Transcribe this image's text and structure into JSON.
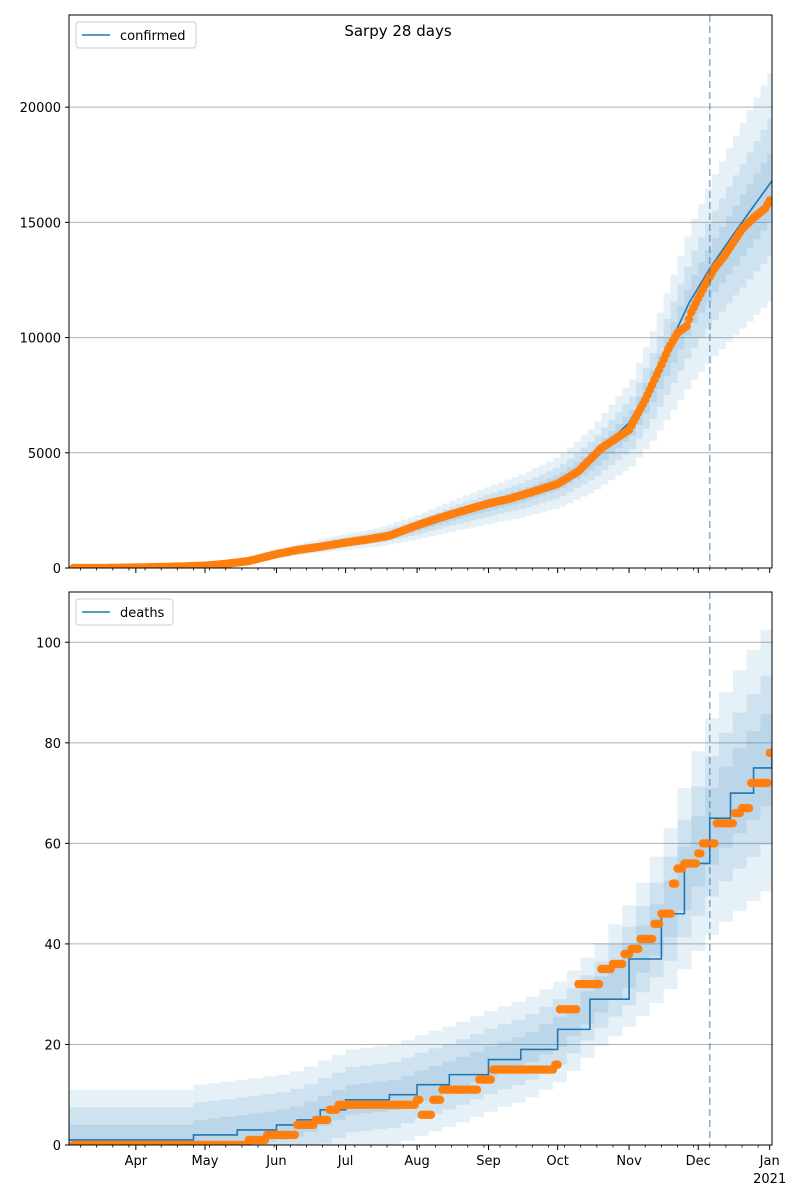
{
  "title": "Sarpy 28 days",
  "colors": {
    "model": "#1f77b4",
    "observed": "#ff7f0e",
    "band": "#1f77b4",
    "grid": "#b0b0b0",
    "forecast_line": "#1f77b4"
  },
  "x_axis": {
    "tick_labels": [
      "Apr",
      "May",
      "Jun",
      "Jul",
      "Aug",
      "Sep",
      "Oct",
      "Nov",
      "Dec",
      "Jan"
    ],
    "tick_dates": [
      "2020-04-01",
      "2020-05-01",
      "2020-06-01",
      "2020-07-01",
      "2020-08-01",
      "2020-09-01",
      "2020-10-01",
      "2020-11-01",
      "2020-12-01",
      "2021-01-01"
    ],
    "year_label": "2021",
    "range": [
      "2020-03-03",
      "2021-01-02"
    ]
  },
  "forecast_date": "2020-12-06",
  "chart_data": [
    {
      "type": "line",
      "legend": "confirmed",
      "legend_position": "upper-left",
      "grid": "y",
      "ylim": [
        0,
        24000
      ],
      "yticks": [
        0,
        5000,
        10000,
        15000,
        20000
      ],
      "model": [
        [
          "2020-03-03",
          0
        ],
        [
          "2020-04-01",
          20
        ],
        [
          "2020-04-15",
          60
        ],
        [
          "2020-05-01",
          150
        ],
        [
          "2020-05-15",
          320
        ],
        [
          "2020-06-01",
          650
        ],
        [
          "2020-06-15",
          900
        ],
        [
          "2020-07-01",
          1150
        ],
        [
          "2020-07-15",
          1350
        ],
        [
          "2020-08-01",
          1800
        ],
        [
          "2020-08-15",
          2250
        ],
        [
          "2020-09-01",
          2750
        ],
        [
          "2020-09-15",
          3150
        ],
        [
          "2020-10-01",
          3750
        ],
        [
          "2020-10-15",
          4700
        ],
        [
          "2020-11-01",
          6300
        ],
        [
          "2020-11-10",
          7900
        ],
        [
          "2020-11-20",
          10000
        ],
        [
          "2020-11-27",
          11500
        ],
        [
          "2020-12-06",
          13000
        ],
        [
          "2020-12-15",
          14300
        ],
        [
          "2020-12-25",
          15700
        ],
        [
          "2021-01-02",
          16800
        ]
      ],
      "observed": [
        [
          "2020-03-05",
          0
        ],
        [
          "2020-03-15",
          2
        ],
        [
          "2020-03-25",
          10
        ],
        [
          "2020-04-05",
          30
        ],
        [
          "2020-04-15",
          50
        ],
        [
          "2020-04-25",
          80
        ],
        [
          "2020-05-01",
          100
        ],
        [
          "2020-05-10",
          180
        ],
        [
          "2020-05-20",
          300
        ],
        [
          "2020-06-01",
          600
        ],
        [
          "2020-06-10",
          780
        ],
        [
          "2020-06-20",
          920
        ],
        [
          "2020-07-01",
          1100
        ],
        [
          "2020-07-10",
          1230
        ],
        [
          "2020-07-20",
          1400
        ],
        [
          "2020-08-01",
          1850
        ],
        [
          "2020-08-10",
          2150
        ],
        [
          "2020-08-20",
          2450
        ],
        [
          "2020-09-01",
          2800
        ],
        [
          "2020-09-10",
          3000
        ],
        [
          "2020-09-20",
          3300
        ],
        [
          "2020-10-01",
          3650
        ],
        [
          "2020-10-10",
          4200
        ],
        [
          "2020-10-20",
          5200
        ],
        [
          "2020-11-01",
          6000
        ],
        [
          "2020-11-08",
          7300
        ],
        [
          "2020-11-14",
          8600
        ],
        [
          "2020-11-18",
          9500
        ],
        [
          "2020-11-22",
          10200
        ],
        [
          "2020-11-26",
          10500
        ],
        [
          "2020-11-28",
          11100
        ],
        [
          "2020-12-01",
          11700
        ],
        [
          "2020-12-04",
          12300
        ],
        [
          "2020-12-08",
          13000
        ],
        [
          "2020-12-12",
          13500
        ],
        [
          "2020-12-16",
          14100
        ],
        [
          "2020-12-20",
          14700
        ],
        [
          "2020-12-25",
          15200
        ],
        [
          "2020-12-30",
          15600
        ],
        [
          "2021-01-01",
          15950
        ]
      ],
      "band_scale": [
        0.3,
        0.18,
        0.09
      ]
    },
    {
      "type": "line",
      "legend": "deaths",
      "legend_position": "upper-left",
      "grid": "y",
      "ylim": [
        0,
        110
      ],
      "yticks": [
        0,
        20,
        40,
        60,
        80,
        100
      ],
      "model": [
        [
          "2020-03-03",
          1
        ],
        [
          "2020-04-25",
          1
        ],
        [
          "2020-04-26",
          2
        ],
        [
          "2020-05-15",
          3
        ],
        [
          "2020-06-01",
          4
        ],
        [
          "2020-06-10",
          5
        ],
        [
          "2020-06-20",
          7
        ],
        [
          "2020-07-01",
          9
        ],
        [
          "2020-07-20",
          10
        ],
        [
          "2020-08-01",
          12
        ],
        [
          "2020-08-15",
          14
        ],
        [
          "2020-09-01",
          17
        ],
        [
          "2020-09-15",
          19
        ],
        [
          "2020-10-01",
          23
        ],
        [
          "2020-10-15",
          29
        ],
        [
          "2020-11-01",
          37
        ],
        [
          "2020-11-15",
          46
        ],
        [
          "2020-11-25",
          56
        ],
        [
          "2020-12-06",
          65
        ],
        [
          "2020-12-15",
          70
        ],
        [
          "2020-12-25",
          75
        ],
        [
          "2021-01-02",
          79
        ]
      ],
      "observed": [
        [
          "2020-03-05",
          0
        ],
        [
          "2020-05-15",
          0
        ],
        [
          "2020-05-20",
          1
        ],
        [
          "2020-05-28",
          2
        ],
        [
          "2020-06-10",
          4
        ],
        [
          "2020-06-18",
          5
        ],
        [
          "2020-06-24",
          7
        ],
        [
          "2020-06-28",
          8
        ],
        [
          "2020-07-30",
          8
        ],
        [
          "2020-08-01",
          9
        ],
        [
          "2020-08-03",
          6
        ],
        [
          "2020-08-08",
          9
        ],
        [
          "2020-08-12",
          11
        ],
        [
          "2020-08-25",
          11
        ],
        [
          "2020-08-28",
          13
        ],
        [
          "2020-09-03",
          15
        ],
        [
          "2020-09-27",
          15
        ],
        [
          "2020-09-30",
          16
        ],
        [
          "2020-10-02",
          27
        ],
        [
          "2020-10-08",
          27
        ],
        [
          "2020-10-10",
          32
        ],
        [
          "2020-10-15",
          32
        ],
        [
          "2020-10-20",
          35
        ],
        [
          "2020-10-25",
          36
        ],
        [
          "2020-10-30",
          38
        ],
        [
          "2020-11-02",
          39
        ],
        [
          "2020-11-06",
          41
        ],
        [
          "2020-11-12",
          44
        ],
        [
          "2020-11-15",
          46
        ],
        [
          "2020-11-20",
          52
        ],
        [
          "2020-11-22",
          55
        ],
        [
          "2020-11-25",
          56
        ],
        [
          "2020-12-01",
          58
        ],
        [
          "2020-12-03",
          60
        ],
        [
          "2020-12-07",
          60
        ],
        [
          "2020-12-09",
          64
        ],
        [
          "2020-12-14",
          64
        ],
        [
          "2020-12-17",
          66
        ],
        [
          "2020-12-20",
          67
        ],
        [
          "2020-12-24",
          72
        ],
        [
          "2020-12-30",
          72
        ],
        [
          "2021-01-01",
          78
        ]
      ],
      "band_scale": [
        0.34,
        0.22,
        0.12
      ]
    }
  ]
}
